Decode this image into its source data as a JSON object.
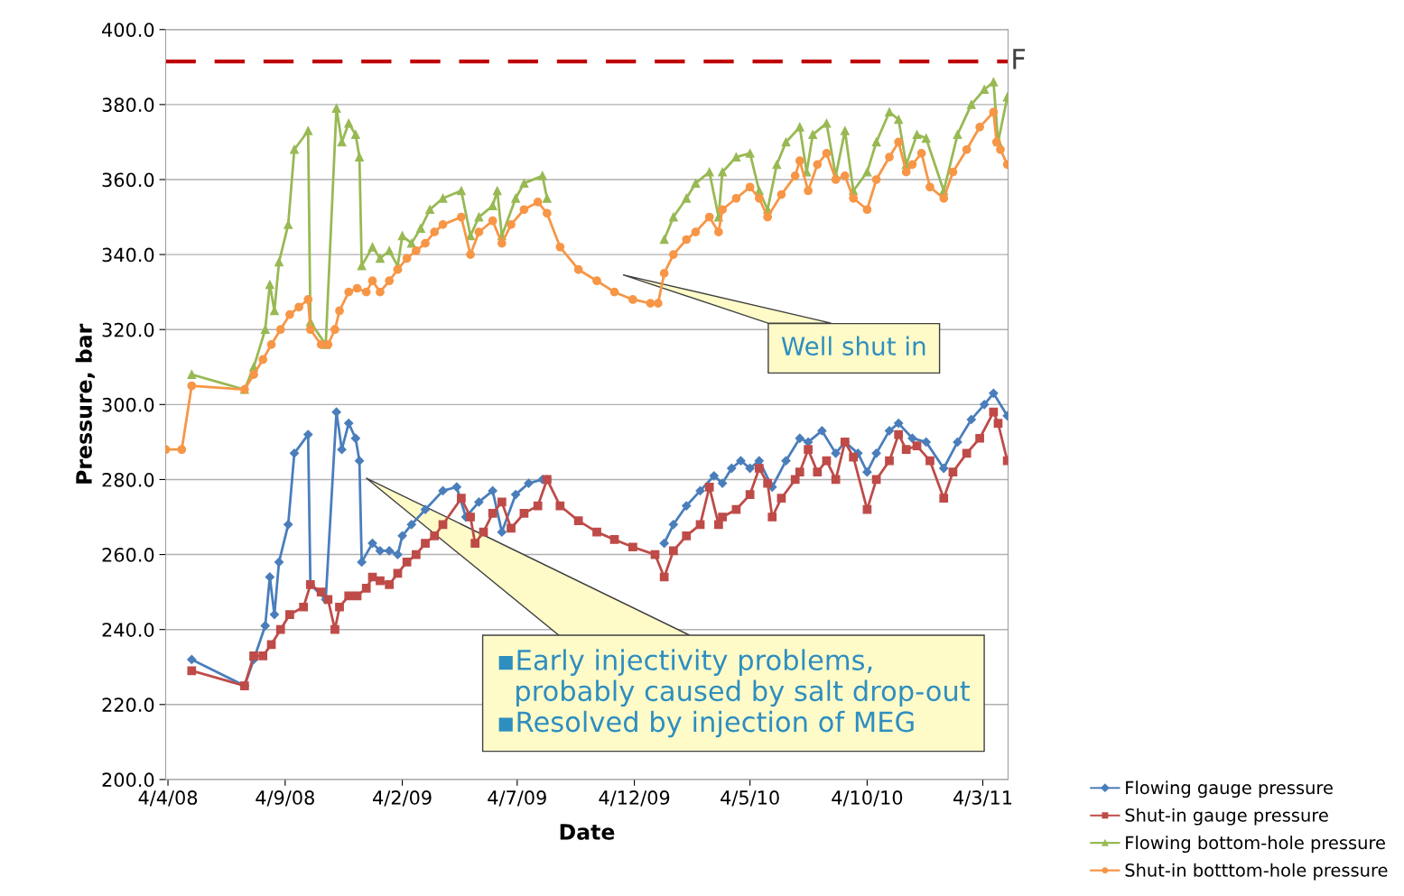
{
  "chart_data": {
    "type": "line",
    "xlabel": "Date",
    "ylabel": "Pressure, bar",
    "xlim": [
      "2008-04-01",
      "2011-04-06"
    ],
    "xticks": [
      {
        "value": "2008-04-04",
        "label": "4/4/08"
      },
      {
        "value": "2008-09-04",
        "label": "4/9/08"
      },
      {
        "value": "2009-02-04",
        "label": "4/2/09"
      },
      {
        "value": "2009-07-04",
        "label": "4/7/09"
      },
      {
        "value": "2009-12-04",
        "label": "4/12/09"
      },
      {
        "value": "2010-05-04",
        "label": "4/5/10"
      },
      {
        "value": "2010-10-04",
        "label": "4/10/10"
      },
      {
        "value": "2011-03-04",
        "label": "4/3/11"
      }
    ],
    "ylim": [
      200,
      400
    ],
    "yticks": [
      {
        "value": 200,
        "label": "200.0"
      },
      {
        "value": 220,
        "label": "220.0"
      },
      {
        "value": 240,
        "label": "240.0"
      },
      {
        "value": 260,
        "label": "260.0"
      },
      {
        "value": 280,
        "label": "280.0"
      },
      {
        "value": 300,
        "label": "300.0"
      },
      {
        "value": 320,
        "label": "320.0"
      },
      {
        "value": 340,
        "label": "340.0"
      },
      {
        "value": 360,
        "label": "360.0"
      },
      {
        "value": 380,
        "label": "380.0"
      },
      {
        "value": 400,
        "label": "400.0"
      }
    ],
    "grid": "y",
    "legend": "bottom right",
    "line_style": "solid",
    "ref_lines": [
      {
        "axis": "y",
        "value": 391.5,
        "label": "F",
        "color": "#c00000",
        "line_style": "dashed"
      }
    ],
    "annotations": [
      "Well shut in",
      "▪Early injectivity problems,\n  probably caused by salt drop-out\n▪Resolved by injection of MEG"
    ],
    "series": [
      {
        "name": "Flowing gauge pressure",
        "color": "#4a7ebb",
        "marker": "diamond",
        "x": [
          "2008-05-05",
          "2008-07-13",
          "2008-07-25",
          "2008-08-09",
          "2008-08-15",
          "2008-08-21",
          "2008-08-27",
          "2008-09-08",
          "2008-09-16",
          "2008-10-04",
          "2008-10-07",
          "2008-10-27",
          "2008-11-10",
          "2008-11-17",
          "2008-11-26",
          "2008-12-05",
          "2008-12-10",
          "2008-12-13",
          "2008-12-27",
          "2009-01-06",
          "2009-01-18",
          "2009-01-29",
          "2009-02-04",
          "2009-02-16",
          "2009-03-06",
          "2009-03-29",
          "2009-04-16",
          "2009-04-28",
          "2009-05-15",
          "2009-06-02",
          "2009-06-14",
          "2009-07-02",
          "2009-07-19",
          "2009-08-06",
          "2009-08-12",
          "2009-10-16",
          "2010-01-12",
          "2010-01-24",
          "2010-02-10",
          "2010-02-28",
          "2010-03-18",
          "2010-03-29",
          "2010-04-10",
          "2010-04-22",
          "2010-05-04",
          "2010-05-16",
          "2010-06-02",
          "2010-06-20",
          "2010-07-08",
          "2010-07-19",
          "2010-08-06",
          "2010-08-24",
          "2010-09-05",
          "2010-09-22",
          "2010-10-04",
          "2010-10-16",
          "2010-11-02",
          "2010-11-14",
          "2010-12-02",
          "2010-12-20",
          "2011-01-12",
          "2011-01-30",
          "2011-02-17",
          "2011-03-06",
          "2011-03-18",
          "2011-04-05"
        ],
        "values": [
          232,
          225,
          232,
          241,
          254,
          244,
          258,
          268,
          287,
          292,
          252,
          248,
          298,
          288,
          295,
          291,
          285,
          258,
          263,
          261,
          261,
          260,
          265,
          268,
          272,
          277,
          278,
          270,
          274,
          277,
          266,
          276,
          279,
          280,
          280,
          null,
          263,
          268,
          273,
          277,
          281,
          279,
          283,
          285,
          283,
          285,
          278,
          285,
          291,
          290,
          293,
          287,
          290,
          287,
          282,
          287,
          293,
          295,
          291,
          290,
          283,
          290,
          296,
          300,
          303,
          297
        ]
      },
      {
        "name": "Shut-in gauge pressure",
        "color": "#be4b48",
        "marker": "square",
        "x": [
          "2008-05-05",
          "2008-07-13",
          "2008-07-25",
          "2008-08-06",
          "2008-08-17",
          "2008-08-29",
          "2008-09-10",
          "2008-09-28",
          "2008-10-07",
          "2008-10-21",
          "2008-10-30",
          "2008-11-08",
          "2008-11-14",
          "2008-11-26",
          "2008-12-07",
          "2008-12-19",
          "2008-12-27",
          "2009-01-06",
          "2009-01-18",
          "2009-01-29",
          "2009-02-10",
          "2009-02-22",
          "2009-03-06",
          "2009-03-18",
          "2009-03-29",
          "2009-04-22",
          "2009-05-04",
          "2009-05-10",
          "2009-05-21",
          "2009-06-02",
          "2009-06-14",
          "2009-06-26",
          "2009-07-13",
          "2009-07-31",
          "2009-08-12",
          "2009-08-29",
          "2009-09-22",
          "2009-10-16",
          "2009-11-08",
          "2009-12-02",
          "2009-12-31",
          "2010-01-12",
          "2010-01-24",
          "2010-02-10",
          "2010-02-28",
          "2010-03-12",
          "2010-03-24",
          "2010-03-29",
          "2010-04-16",
          "2010-05-04",
          "2010-05-16",
          "2010-05-27",
          "2010-06-02",
          "2010-06-14",
          "2010-07-02",
          "2010-07-08",
          "2010-07-19",
          "2010-07-31",
          "2010-08-12",
          "2010-08-24",
          "2010-09-05",
          "2010-09-16",
          "2010-10-04",
          "2010-10-16",
          "2010-11-02",
          "2010-11-14",
          "2010-11-24",
          "2010-12-08",
          "2010-12-25",
          "2011-01-12",
          "2011-01-24",
          "2011-02-11",
          "2011-02-28",
          "2011-03-18",
          "2011-03-24",
          "2011-04-05"
        ],
        "values": [
          229,
          225,
          233,
          233,
          236,
          240,
          244,
          246,
          252,
          250,
          248,
          240,
          246,
          249,
          249,
          251,
          254,
          253,
          252,
          255,
          258,
          260,
          263,
          265,
          268,
          275,
          270,
          263,
          266,
          271,
          274,
          267,
          271,
          273,
          280,
          273,
          269,
          266,
          264,
          262,
          260,
          254,
          261,
          265,
          268,
          278,
          268,
          270,
          272,
          276,
          283,
          279,
          270,
          275,
          280,
          282,
          288,
          282,
          285,
          280,
          290,
          286,
          272,
          280,
          285,
          292,
          288,
          289,
          285,
          275,
          282,
          287,
          291,
          298,
          295,
          285
        ]
      },
      {
        "name": "Flowing bottom-hole pressure",
        "color": "#98b954",
        "marker": "triangle",
        "x": [
          "2008-05-05",
          "2008-07-13",
          "2008-07-25",
          "2008-08-09",
          "2008-08-15",
          "2008-08-21",
          "2008-08-27",
          "2008-09-08",
          "2008-09-16",
          "2008-10-04",
          "2008-10-07",
          "2008-10-27",
          "2008-11-10",
          "2008-11-17",
          "2008-11-26",
          "2008-12-05",
          "2008-12-10",
          "2008-12-13",
          "2008-12-27",
          "2009-01-06",
          "2009-01-18",
          "2009-01-29",
          "2009-02-04",
          "2009-02-16",
          "2009-02-28",
          "2009-03-12",
          "2009-03-29",
          "2009-04-22",
          "2009-05-04",
          "2009-05-15",
          "2009-06-02",
          "2009-06-08",
          "2009-06-14",
          "2009-07-02",
          "2009-07-13",
          "2009-08-06",
          "2009-08-12",
          "2009-10-16",
          "2010-01-12",
          "2010-01-24",
          "2010-02-10",
          "2010-02-22",
          "2010-03-12",
          "2010-03-24",
          "2010-03-29",
          "2010-04-16",
          "2010-05-04",
          "2010-05-16",
          "2010-05-27",
          "2010-06-08",
          "2010-06-20",
          "2010-07-08",
          "2010-07-17",
          "2010-07-25",
          "2010-08-12",
          "2010-08-24",
          "2010-09-05",
          "2010-09-16",
          "2010-10-04",
          "2010-10-16",
          "2010-11-02",
          "2010-11-14",
          "2010-11-24",
          "2010-12-08",
          "2010-12-20",
          "2011-01-12",
          "2011-01-30",
          "2011-02-17",
          "2011-03-06",
          "2011-03-18",
          "2011-03-24",
          "2011-04-05"
        ],
        "values": [
          308,
          304,
          310,
          320,
          332,
          325,
          338,
          348,
          368,
          373,
          322,
          316,
          379,
          370,
          375,
          372,
          366,
          337,
          342,
          339,
          341,
          337,
          345,
          343,
          347,
          352,
          355,
          357,
          345,
          350,
          353,
          357,
          345,
          355,
          359,
          361,
          355,
          null,
          344,
          350,
          355,
          359,
          362,
          350,
          362,
          366,
          367,
          357,
          352,
          364,
          370,
          374,
          362,
          372,
          375,
          361,
          373,
          357,
          362,
          370,
          378,
          376,
          364,
          372,
          371,
          357,
          372,
          380,
          384,
          386,
          370,
          382
        ]
      },
      {
        "name": "Shut-in botttom-hole pressure",
        "color": "#f79646",
        "marker": "circle",
        "x": [
          "2008-04-01",
          "2008-04-22",
          "2008-05-05",
          "2008-07-13",
          "2008-07-25",
          "2008-08-06",
          "2008-08-17",
          "2008-08-29",
          "2008-09-10",
          "2008-09-22",
          "2008-10-04",
          "2008-10-07",
          "2008-10-21",
          "2008-10-30",
          "2008-11-08",
          "2008-11-14",
          "2008-11-26",
          "2008-12-07",
          "2008-12-19",
          "2008-12-27",
          "2009-01-06",
          "2009-01-18",
          "2009-01-29",
          "2009-02-10",
          "2009-02-22",
          "2009-03-06",
          "2009-03-18",
          "2009-03-29",
          "2009-04-22",
          "2009-05-04",
          "2009-05-15",
          "2009-06-02",
          "2009-06-14",
          "2009-06-26",
          "2009-07-13",
          "2009-07-31",
          "2009-08-12",
          "2009-08-29",
          "2009-09-22",
          "2009-10-16",
          "2009-11-08",
          "2009-12-02",
          "2009-12-25",
          "2010-01-04",
          "2010-01-12",
          "2010-01-24",
          "2010-02-10",
          "2010-02-22",
          "2010-03-12",
          "2010-03-24",
          "2010-03-29",
          "2010-04-16",
          "2010-05-04",
          "2010-05-16",
          "2010-05-27",
          "2010-06-14",
          "2010-07-02",
          "2010-07-08",
          "2010-07-19",
          "2010-07-31",
          "2010-08-12",
          "2010-08-24",
          "2010-09-05",
          "2010-09-16",
          "2010-10-04",
          "2010-10-16",
          "2010-11-02",
          "2010-11-14",
          "2010-11-24",
          "2010-12-02",
          "2010-12-14",
          "2010-12-25",
          "2011-01-12",
          "2011-01-24",
          "2011-02-11",
          "2011-02-28",
          "2011-03-18",
          "2011-03-22",
          "2011-03-27",
          "2011-04-05"
        ],
        "values": [
          288,
          288,
          305,
          304,
          308,
          312,
          316,
          320,
          324,
          326,
          328,
          320,
          316,
          316,
          320,
          325,
          330,
          331,
          330,
          333,
          330,
          333,
          336,
          339,
          341,
          343,
          346,
          348,
          350,
          340,
          346,
          349,
          343,
          348,
          352,
          354,
          351,
          342,
          336,
          333,
          330,
          328,
          327,
          327,
          335,
          340,
          344,
          346,
          350,
          346,
          352,
          355,
          358,
          355,
          350,
          356,
          361,
          365,
          357,
          364,
          367,
          360,
          361,
          355,
          352,
          360,
          366,
          370,
          362,
          364,
          367,
          358,
          355,
          362,
          368,
          374,
          378,
          370,
          368,
          364
        ]
      }
    ]
  }
}
